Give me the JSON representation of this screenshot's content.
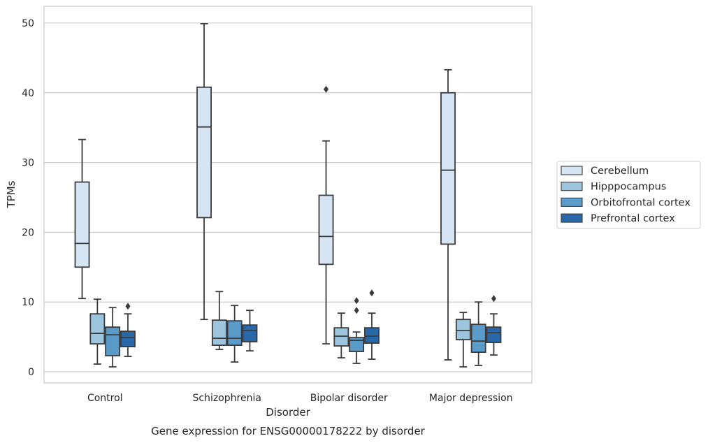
{
  "chart_data": {
    "type": "box",
    "title": "Gene expression for ENSG00000178222 by disorder",
    "xlabel": "Disorder",
    "ylabel": "TPMs",
    "ylim": [
      -1.6,
      52.4
    ],
    "yticks": [
      0,
      10,
      20,
      30,
      40,
      50
    ],
    "grid": "horizontal",
    "legend_position": "right",
    "categories": [
      "Control",
      "Schizophrenia",
      "Bipolar disorder",
      "Major depression"
    ],
    "series": [
      {
        "name": "Cerebellum",
        "color": "#d6e5f4",
        "boxes": [
          {
            "whislo": 10.5,
            "q1": 15.0,
            "med": 18.4,
            "q3": 27.2,
            "whishi": 33.3,
            "fliers": []
          },
          {
            "whislo": 7.5,
            "q1": 22.1,
            "med": 35.1,
            "q3": 40.8,
            "whishi": 49.9,
            "fliers": []
          },
          {
            "whislo": 4.0,
            "q1": 15.4,
            "med": 19.4,
            "q3": 25.3,
            "whishi": 33.1,
            "fliers": [
              40.5
            ]
          },
          {
            "whislo": 1.7,
            "q1": 18.3,
            "med": 28.9,
            "q3": 40.0,
            "whishi": 43.3,
            "fliers": []
          }
        ]
      },
      {
        "name": "Hipppocampus",
        "color": "#9dc5de",
        "boxes": [
          {
            "whislo": 1.1,
            "q1": 4.0,
            "med": 5.5,
            "q3": 8.3,
            "whishi": 10.4,
            "fliers": []
          },
          {
            "whislo": 3.2,
            "q1": 3.8,
            "med": 4.8,
            "q3": 7.4,
            "whishi": 11.5,
            "fliers": []
          },
          {
            "whislo": 2.0,
            "q1": 3.7,
            "med": 5.1,
            "q3": 6.3,
            "whishi": 8.4,
            "fliers": []
          },
          {
            "whislo": 0.7,
            "q1": 4.6,
            "med": 5.9,
            "q3": 7.5,
            "whishi": 8.5,
            "fliers": []
          }
        ]
      },
      {
        "name": "Orbitofrontal cortex",
        "color": "#5a9bc9",
        "boxes": [
          {
            "whislo": 0.7,
            "q1": 2.3,
            "med": 5.3,
            "q3": 6.4,
            "whishi": 9.2,
            "fliers": []
          },
          {
            "whislo": 1.4,
            "q1": 3.8,
            "med": 4.8,
            "q3": 7.3,
            "whishi": 9.5,
            "fliers": []
          },
          {
            "whislo": 1.2,
            "q1": 2.9,
            "med": 4.5,
            "q3": 4.9,
            "whishi": 5.7,
            "fliers": [
              8.8,
              10.2
            ]
          },
          {
            "whislo": 0.9,
            "q1": 2.8,
            "med": 4.4,
            "q3": 6.8,
            "whishi": 10.0,
            "fliers": []
          }
        ]
      },
      {
        "name": "Prefrontal cortex",
        "color": "#2868a9",
        "boxes": [
          {
            "whislo": 2.2,
            "q1": 3.6,
            "med": 4.9,
            "q3": 5.8,
            "whishi": 8.3,
            "fliers": [
              9.4
            ]
          },
          {
            "whislo": 3.0,
            "q1": 4.3,
            "med": 5.9,
            "q3": 6.7,
            "whishi": 8.8,
            "fliers": []
          },
          {
            "whislo": 1.8,
            "q1": 4.1,
            "med": 5.1,
            "q3": 6.3,
            "whishi": 8.4,
            "fliers": [
              11.3
            ]
          },
          {
            "whislo": 2.4,
            "q1": 4.2,
            "med": 5.6,
            "q3": 6.4,
            "whishi": 8.3,
            "fliers": [
              10.5
            ]
          }
        ]
      }
    ]
  }
}
